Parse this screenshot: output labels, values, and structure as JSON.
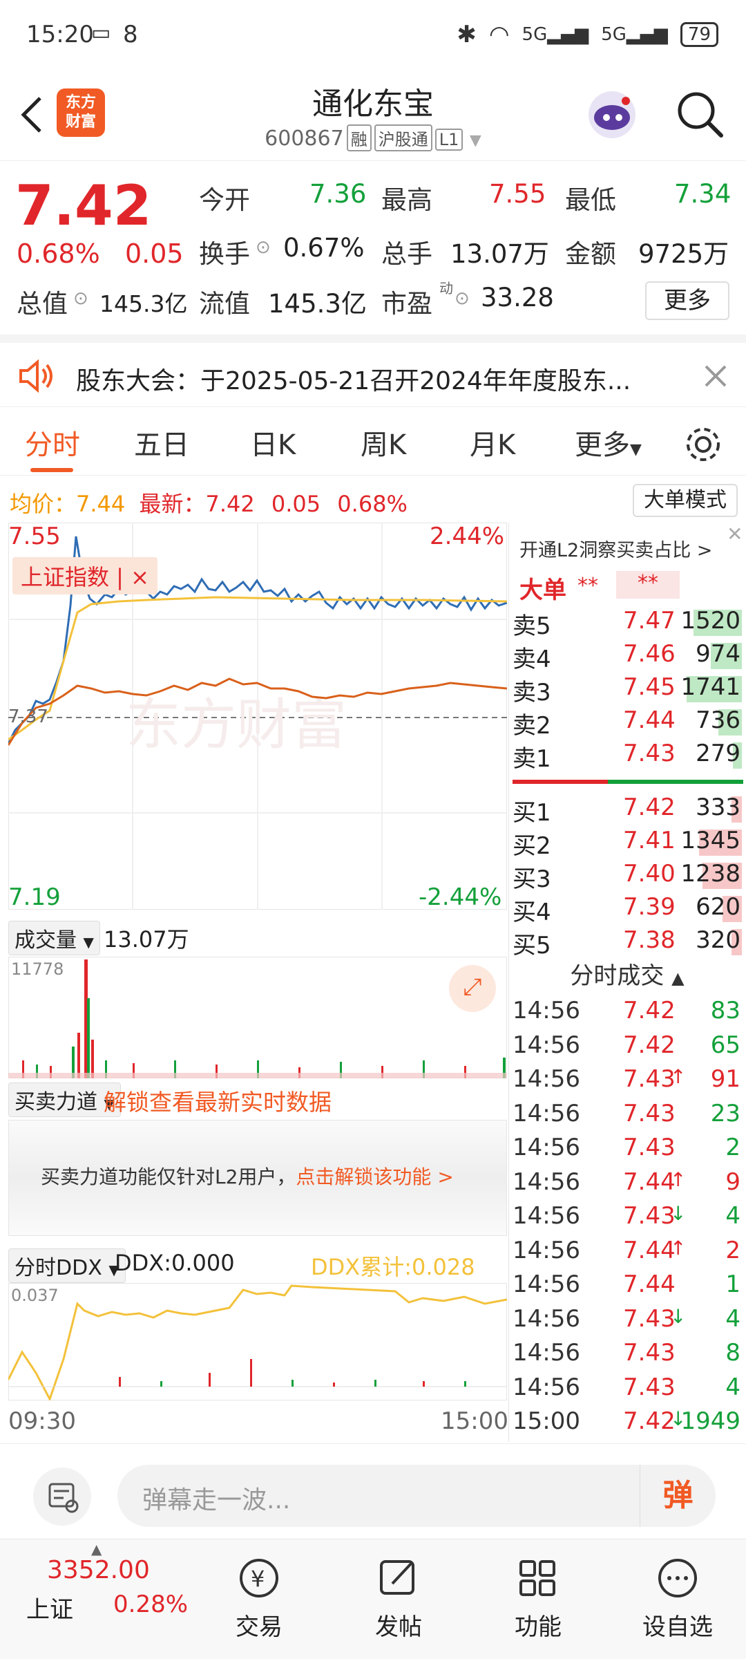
{
  "status_bar": {
    "time": "15:20",
    "notif_count": "8",
    "battery": "79"
  },
  "header": {
    "logo_line1": "东方",
    "logo_line2": "财富",
    "title": "通化东宝",
    "code": "600867",
    "tags": [
      "融",
      "沪股通",
      "L1"
    ]
  },
  "quote": {
    "price": "7.42",
    "change_pct": "0.68%",
    "change": "0.05",
    "open_label": "今开",
    "open": "7.36",
    "high_label": "最高",
    "high": "7.55",
    "low_label": "最低",
    "low": "7.34",
    "turnover_label": "换手",
    "turnover": "0.67%",
    "volume_label": "总手",
    "volume": "13.07万",
    "amount_label": "金额",
    "amount": "9725万",
    "mktcap_label": "总值",
    "mktcap": "145.3亿",
    "float_label": "流值",
    "float": "145.3亿",
    "pe_label": "市盈",
    "pe_sup": "动",
    "pe": "33.28",
    "more_label": "更多"
  },
  "notice": {
    "text": "股东大会：于2025-05-21召开2024年年度股东..."
  },
  "tabs": [
    {
      "label": "分时"
    },
    {
      "label": "五日"
    },
    {
      "label": "日K"
    },
    {
      "label": "周K"
    },
    {
      "label": "月K"
    },
    {
      "label": "更多"
    }
  ],
  "chart": {
    "avg_label": "均价：",
    "avg": "7.44",
    "latest_label": "最新：",
    "latest": "7.42",
    "latest_chg": "0.05",
    "latest_pct": "0.68%",
    "mode_label": "大单模式",
    "top_price": "7.55",
    "top_pct": "2.44%",
    "bottom_price": "7.19",
    "bottom_pct": "-2.44%",
    "ref_price": "7.37",
    "index_overlay": "上证指数 | ×",
    "volume_selector": "成交量",
    "volume_total": "13.07万",
    "volume_max": "11778",
    "force_selector": "买卖力道",
    "force_unlock": "解锁查看最新实时数据",
    "force_notice": "买卖力道功能仅针对L2用户，",
    "force_link": "点击解锁该功能 >",
    "ddx_selector": "分时DDX",
    "ddx_value": "DDX:0.000",
    "ddx_cum": "DDX累计:0.028",
    "ddx_max": "0.037",
    "time_start": "09:30",
    "time_end": "15:00"
  },
  "orderbook": {
    "l2_banner": "开通L2洞察买卖占比 >",
    "big_order": "大单",
    "big_order_v1": "**",
    "big_order_v2": "**",
    "asks": [
      {
        "label": "卖5",
        "price": "7.47",
        "vol": "1520"
      },
      {
        "label": "卖4",
        "price": "7.46",
        "vol": "974"
      },
      {
        "label": "卖3",
        "price": "7.45",
        "vol": "1741"
      },
      {
        "label": "卖2",
        "price": "7.44",
        "vol": "736"
      },
      {
        "label": "卖1",
        "price": "7.43",
        "vol": "279"
      }
    ],
    "bids": [
      {
        "label": "买1",
        "price": "7.42",
        "vol": "333"
      },
      {
        "label": "买2",
        "price": "7.41",
        "vol": "1345"
      },
      {
        "label": "买3",
        "price": "7.40",
        "vol": "1238"
      },
      {
        "label": "买4",
        "price": "7.39",
        "vol": "620"
      },
      {
        "label": "买5",
        "price": "7.38",
        "vol": "320"
      }
    ],
    "ticks_title": "分时成交",
    "ticks": [
      {
        "time": "14:56",
        "price": "7.42",
        "arrow": "",
        "vol": "83"
      },
      {
        "time": "14:56",
        "price": "7.42",
        "arrow": "",
        "vol": "65"
      },
      {
        "time": "14:56",
        "price": "7.43",
        "arrow": "↑",
        "vol": "91"
      },
      {
        "time": "14:56",
        "price": "7.43",
        "arrow": "",
        "vol": "23"
      },
      {
        "time": "14:56",
        "price": "7.43",
        "arrow": "",
        "vol": "2"
      },
      {
        "time": "14:56",
        "price": "7.44",
        "arrow": "↑",
        "vol": "9"
      },
      {
        "time": "14:56",
        "price": "7.43",
        "arrow": "↓",
        "vol": "4"
      },
      {
        "time": "14:56",
        "price": "7.44",
        "arrow": "↑",
        "vol": "2"
      },
      {
        "time": "14:56",
        "price": "7.44",
        "arrow": "",
        "vol": "1"
      },
      {
        "time": "14:56",
        "price": "7.43",
        "arrow": "↓",
        "vol": "4"
      },
      {
        "time": "14:56",
        "price": "7.43",
        "arrow": "",
        "vol": "8"
      },
      {
        "time": "14:56",
        "price": "7.43",
        "arrow": "",
        "vol": "4"
      },
      {
        "time": "15:00",
        "price": "7.42",
        "arrow": "↓",
        "vol": "1949"
      }
    ]
  },
  "danmu": {
    "placeholder": "弹幕走一波...",
    "send": "弹"
  },
  "bottom_nav": {
    "index_value": "3352.00",
    "index_name": "上证",
    "index_pct": "0.28%",
    "items": [
      {
        "label": "交易"
      },
      {
        "label": "发帖"
      },
      {
        "label": "功能"
      },
      {
        "label": "设自选"
      }
    ]
  },
  "colors": {
    "up": "#e0262a",
    "down": "#13a03a",
    "brand": "#f15a24",
    "avg_line": "#f3c13a",
    "price_line": "#2f6db5",
    "index_line": "#d9601a"
  }
}
